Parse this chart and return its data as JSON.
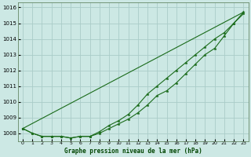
{
  "title": "Graphe pression niveau de la mer (hPa)",
  "bg_color": "#cce8e4",
  "grid_color": "#aaccc8",
  "line_color": "#1a6b1a",
  "marker": "*",
  "xlim_min": -0.5,
  "xlim_max": 23.5,
  "ylim": [
    1007.5,
    1016.3
  ],
  "yticks": [
    1008,
    1009,
    1010,
    1011,
    1012,
    1013,
    1014,
    1015,
    1016
  ],
  "xticks": [
    0,
    1,
    2,
    3,
    4,
    5,
    6,
    7,
    8,
    9,
    10,
    11,
    12,
    13,
    14,
    15,
    16,
    17,
    18,
    19,
    20,
    21,
    22,
    23
  ],
  "series1_x": [
    0,
    1,
    2,
    3,
    4,
    5,
    6,
    7,
    8,
    9,
    10,
    11,
    12,
    13,
    14,
    15,
    16,
    17,
    18,
    19,
    20,
    21,
    22,
    23
  ],
  "series1_y": [
    1008.3,
    1008.0,
    1007.8,
    1007.8,
    1007.8,
    1007.7,
    1007.8,
    1007.8,
    1008.1,
    1008.5,
    1008.8,
    1009.2,
    1009.8,
    1010.5,
    1011.0,
    1011.5,
    1012.0,
    1012.5,
    1013.0,
    1013.5,
    1014.0,
    1014.4,
    1015.0,
    1015.7
  ],
  "series2_x": [
    0,
    1,
    2,
    3,
    4,
    5,
    6,
    7,
    8,
    9,
    10,
    11,
    12,
    13,
    14,
    15,
    16,
    17,
    18,
    19,
    20,
    21,
    22,
    23
  ],
  "series2_y": [
    1008.3,
    1008.0,
    1007.8,
    1007.8,
    1007.8,
    1007.7,
    1007.8,
    1007.8,
    1008.0,
    1008.3,
    1008.6,
    1008.9,
    1009.3,
    1009.8,
    1010.4,
    1010.7,
    1011.2,
    1011.8,
    1012.4,
    1013.0,
    1013.4,
    1014.2,
    1015.0,
    1015.6
  ],
  "series3_x": [
    0,
    1,
    2,
    3,
    4,
    5,
    6,
    7,
    8,
    9,
    10,
    11,
    12,
    13,
    14,
    15,
    16,
    17,
    18,
    19,
    20,
    21,
    22,
    23
  ],
  "series3_y": [
    1008.3,
    1008.0,
    1007.85,
    1007.85,
    1007.85,
    1007.75,
    1007.8,
    1007.85,
    1008.05,
    1008.4,
    1008.9,
    1009.5,
    1010.1,
    1010.55,
    1011.05,
    1011.55,
    1012.15,
    1012.75,
    1013.25,
    1013.55,
    1014.05,
    1014.45,
    1015.05,
    1015.65
  ]
}
